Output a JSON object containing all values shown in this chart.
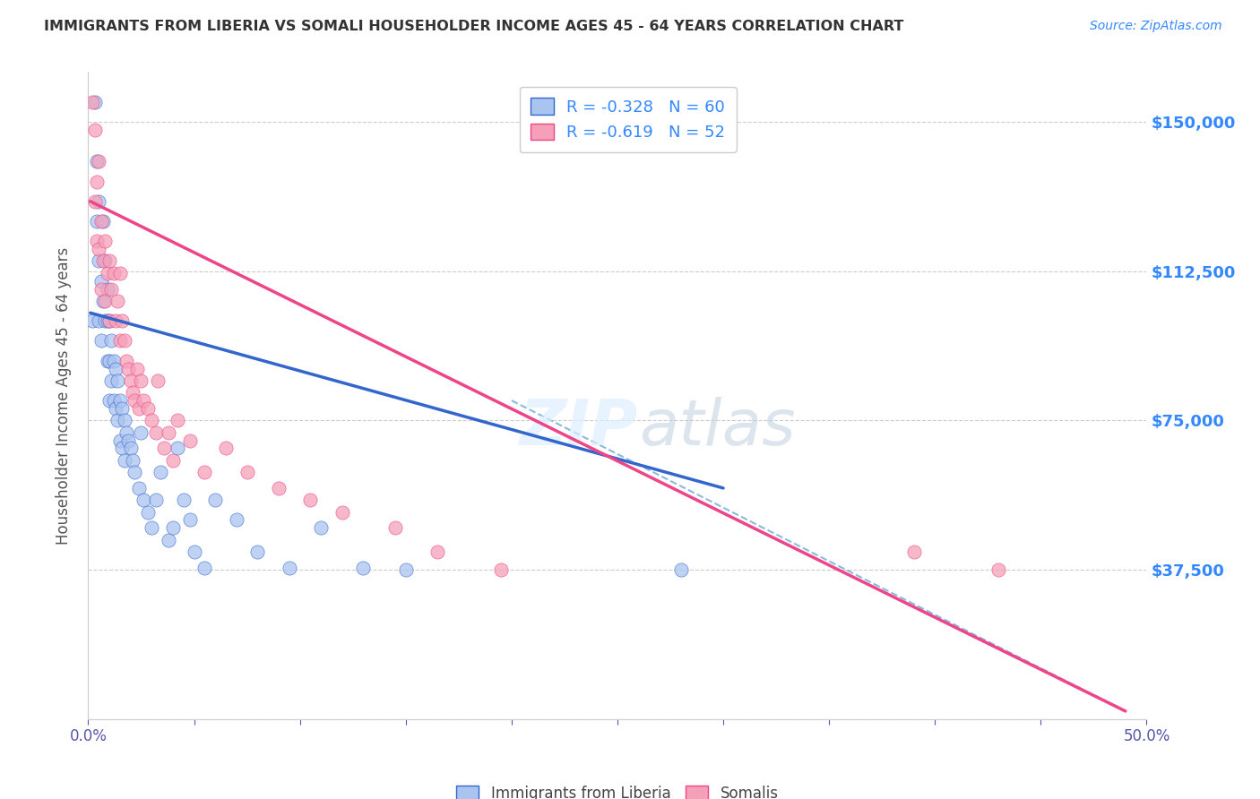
{
  "title": "IMMIGRANTS FROM LIBERIA VS SOMALI HOUSEHOLDER INCOME AGES 45 - 64 YEARS CORRELATION CHART",
  "source": "Source: ZipAtlas.com",
  "ylabel": "Householder Income Ages 45 - 64 years",
  "xlim": [
    0.0,
    0.5
  ],
  "ylim": [
    0,
    162500
  ],
  "yticks": [
    0,
    37500,
    75000,
    112500,
    150000
  ],
  "ytick_labels": [
    "",
    "$37,500",
    "$75,000",
    "$112,500",
    "$150,000"
  ],
  "xticks": [
    0.0,
    0.05,
    0.1,
    0.15,
    0.2,
    0.25,
    0.3,
    0.35,
    0.4,
    0.45,
    0.5
  ],
  "xtick_labels": [
    "0.0%",
    "",
    "",
    "",
    "",
    "",
    "",
    "",
    "",
    "",
    "50.0%"
  ],
  "legend_liberia_R": "-0.328",
  "legend_liberia_N": "60",
  "legend_somali_R": "-0.619",
  "legend_somali_N": "52",
  "color_liberia": "#aac4f0",
  "color_somali": "#f5a0b8",
  "color_liberia_line": "#3366cc",
  "color_somali_line": "#ee4488",
  "color_dashed": "#88bbdd",
  "background_color": "#ffffff",
  "grid_color": "#cccccc",
  "title_color": "#333333",
  "axis_label_color": "#555555",
  "right_tick_color": "#3388ff",
  "liberia_scatter_x": [
    0.002,
    0.003,
    0.004,
    0.004,
    0.005,
    0.005,
    0.005,
    0.006,
    0.006,
    0.007,
    0.007,
    0.008,
    0.008,
    0.009,
    0.009,
    0.009,
    0.01,
    0.01,
    0.01,
    0.011,
    0.011,
    0.012,
    0.012,
    0.013,
    0.013,
    0.014,
    0.014,
    0.015,
    0.015,
    0.016,
    0.016,
    0.017,
    0.017,
    0.018,
    0.019,
    0.02,
    0.021,
    0.022,
    0.024,
    0.025,
    0.026,
    0.028,
    0.03,
    0.032,
    0.034,
    0.038,
    0.04,
    0.042,
    0.045,
    0.048,
    0.05,
    0.055,
    0.06,
    0.07,
    0.08,
    0.095,
    0.11,
    0.13,
    0.15,
    0.28
  ],
  "liberia_scatter_y": [
    100000,
    155000,
    140000,
    125000,
    130000,
    115000,
    100000,
    110000,
    95000,
    125000,
    105000,
    115000,
    100000,
    108000,
    100000,
    90000,
    100000,
    90000,
    80000,
    95000,
    85000,
    90000,
    80000,
    88000,
    78000,
    85000,
    75000,
    80000,
    70000,
    78000,
    68000,
    75000,
    65000,
    72000,
    70000,
    68000,
    65000,
    62000,
    58000,
    72000,
    55000,
    52000,
    48000,
    55000,
    62000,
    45000,
    48000,
    68000,
    55000,
    50000,
    42000,
    38000,
    55000,
    50000,
    42000,
    38000,
    48000,
    38000,
    37500,
    37500
  ],
  "somali_scatter_x": [
    0.002,
    0.003,
    0.003,
    0.004,
    0.004,
    0.005,
    0.005,
    0.006,
    0.006,
    0.007,
    0.008,
    0.008,
    0.009,
    0.01,
    0.01,
    0.011,
    0.012,
    0.013,
    0.014,
    0.015,
    0.015,
    0.016,
    0.017,
    0.018,
    0.019,
    0.02,
    0.021,
    0.022,
    0.023,
    0.024,
    0.025,
    0.026,
    0.028,
    0.03,
    0.032,
    0.033,
    0.036,
    0.038,
    0.04,
    0.042,
    0.048,
    0.055,
    0.065,
    0.075,
    0.09,
    0.105,
    0.12,
    0.145,
    0.165,
    0.195,
    0.39,
    0.43
  ],
  "somali_scatter_y": [
    155000,
    148000,
    130000,
    135000,
    120000,
    140000,
    118000,
    125000,
    108000,
    115000,
    120000,
    105000,
    112000,
    115000,
    100000,
    108000,
    112000,
    100000,
    105000,
    112000,
    95000,
    100000,
    95000,
    90000,
    88000,
    85000,
    82000,
    80000,
    88000,
    78000,
    85000,
    80000,
    78000,
    75000,
    72000,
    85000,
    68000,
    72000,
    65000,
    75000,
    70000,
    62000,
    68000,
    62000,
    58000,
    55000,
    52000,
    48000,
    42000,
    37500,
    42000,
    37500
  ],
  "liberia_line_x": [
    0.001,
    0.3
  ],
  "liberia_line_y": [
    102000,
    58000
  ],
  "somali_line_x": [
    0.001,
    0.49
  ],
  "somali_line_y": [
    130000,
    2000
  ],
  "dashed_line_x": [
    0.2,
    0.49
  ],
  "dashed_line_y": [
    80000,
    2000
  ]
}
